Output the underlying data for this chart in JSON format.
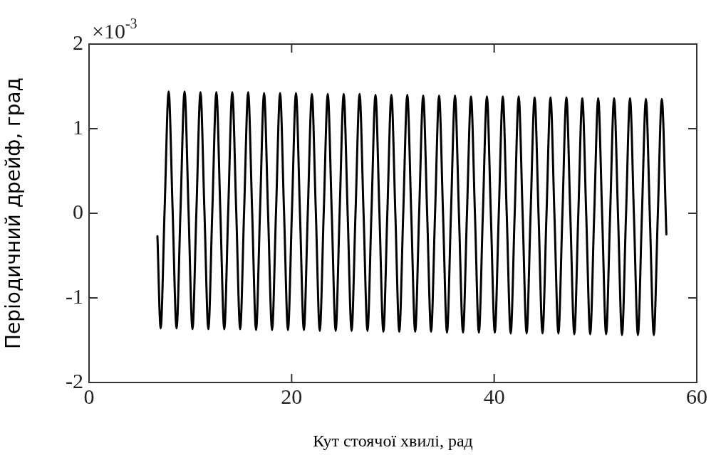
{
  "chart_data": {
    "type": "line",
    "xlabel": "Кут стоячої хвилі, рад",
    "ylabel": "Періодичний дрейф, град",
    "annotations": [
      "×10$^{-3}$"
    ],
    "xlim": [
      0,
      60
    ],
    "xticks": [
      0,
      20,
      40,
      60
    ],
    "ylim": [
      -2,
      2
    ],
    "yticks": [
      -2,
      -1,
      0,
      1,
      2
    ],
    "grid": false,
    "legend": false,
    "marker": "none",
    "line_style": "solid",
    "series": [
      {
        "color": "#000000",
        "x": [
          6.75,
          7.07,
          7.46,
          7.86,
          8.25,
          8.64,
          9.03,
          9.43,
          9.82,
          10.21,
          10.6,
          11.0,
          11.39,
          11.78,
          12.17,
          12.57,
          12.96,
          13.35,
          13.74,
          14.14,
          14.53,
          14.92,
          15.31,
          15.71,
          16.1,
          16.49,
          16.88,
          17.28,
          17.67,
          18.07,
          18.46,
          18.86,
          19.25,
          19.64,
          20.03,
          20.43,
          20.82,
          21.21,
          21.6,
          22.0,
          22.39,
          22.78,
          23.17,
          23.57,
          23.96,
          24.35,
          24.74,
          25.14,
          25.53,
          25.92,
          26.31,
          26.71,
          27.1,
          27.49,
          27.88,
          28.28,
          28.67,
          29.06,
          29.45,
          29.85,
          30.24,
          30.63,
          31.02,
          31.42,
          31.81,
          32.2,
          32.59,
          32.99,
          33.38,
          33.77,
          34.16,
          34.56,
          34.95,
          35.34,
          35.73,
          36.13,
          36.52,
          36.92,
          37.31,
          37.71,
          38.1,
          38.49,
          38.88,
          39.28,
          39.67,
          40.06,
          40.45,
          40.85,
          41.24,
          41.63,
          42.02,
          42.42,
          42.81,
          43.2,
          43.59,
          43.99,
          44.38,
          44.77,
          45.16,
          45.56,
          45.95,
          46.34,
          46.73,
          47.13,
          47.52,
          47.91,
          48.3,
          48.7,
          49.09,
          49.48,
          49.87,
          50.27,
          50.66,
          51.05,
          51.44,
          51.84,
          52.23,
          52.62,
          53.01,
          53.41,
          53.8,
          54.19,
          54.58,
          54.98,
          55.37,
          55.76,
          56.15,
          56.55,
          57.0
        ],
        "values": [
          -0.27,
          -1.36,
          0.04,
          1.44,
          0.04,
          -1.36,
          0.04,
          1.44,
          0.04,
          -1.37,
          0.03,
          1.43,
          0.03,
          -1.37,
          0.03,
          1.43,
          0.03,
          -1.37,
          0.03,
          1.43,
          0.03,
          -1.37,
          0.03,
          1.43,
          0.03,
          -1.38,
          0.02,
          1.42,
          0.02,
          -1.38,
          0.02,
          1.42,
          0.02,
          -1.38,
          0.02,
          1.42,
          0.02,
          -1.38,
          0.02,
          1.41,
          0.02,
          -1.39,
          0.01,
          1.41,
          0.01,
          -1.39,
          0.01,
          1.41,
          0.01,
          -1.39,
          0.01,
          1.41,
          0.01,
          -1.39,
          0.0,
          1.4,
          0.0,
          -1.4,
          0.0,
          1.4,
          0.0,
          -1.4,
          0.0,
          1.4,
          0.0,
          -1.4,
          0.0,
          1.39,
          0.0,
          -1.4,
          -0.01,
          1.39,
          -0.01,
          -1.41,
          -0.01,
          1.39,
          -0.01,
          -1.41,
          -0.01,
          1.38,
          -0.01,
          -1.41,
          -0.01,
          1.38,
          -0.01,
          -1.41,
          -0.02,
          1.38,
          -0.02,
          -1.42,
          -0.02,
          1.38,
          -0.02,
          -1.42,
          -0.02,
          1.37,
          -0.02,
          -1.42,
          -0.03,
          1.37,
          -0.03,
          -1.42,
          -0.03,
          1.37,
          -0.03,
          -1.43,
          -0.03,
          1.36,
          -0.03,
          -1.43,
          -0.03,
          1.36,
          -0.03,
          -1.43,
          -0.04,
          1.36,
          -0.04,
          -1.44,
          -0.04,
          1.36,
          -0.04,
          -1.44,
          -0.04,
          1.35,
          -0.04,
          -1.44,
          -0.04,
          1.35,
          -0.25
        ]
      }
    ]
  }
}
